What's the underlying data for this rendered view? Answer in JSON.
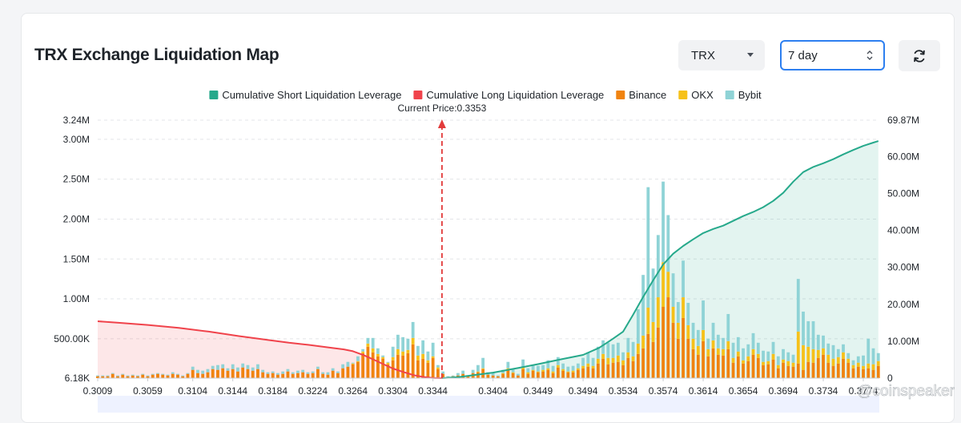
{
  "header": {
    "title": "TRX Exchange Liquidation Map",
    "coin_select": "TRX",
    "range_select": "7 day"
  },
  "icons": {
    "coin_caret": "chevron-down-icon",
    "range_stepper": "up-down-icon",
    "refresh": "refresh-icon"
  },
  "watermark": "@coinspeaker",
  "colors": {
    "short_cum": "#26a98b",
    "long_cum": "#f0434b",
    "binance": "#f0830f",
    "okx": "#f6c11a",
    "bybit": "#8fd3d6"
  },
  "chart_data": {
    "type": "bar",
    "current_price_label": "Current Price:0.3353",
    "current_price": 0.3353,
    "legend": [
      {
        "key": "short_cum",
        "label": "Cumulative Short Liquidation Leverage",
        "type": "line"
      },
      {
        "key": "long_cum",
        "label": "Cumulative Long Liquidation Leverage",
        "type": "line"
      },
      {
        "key": "binance",
        "label": "Binance",
        "type": "bar"
      },
      {
        "key": "okx",
        "label": "OKX",
        "type": "bar"
      },
      {
        "key": "bybit",
        "label": "Bybit",
        "type": "bar"
      }
    ],
    "x_ticks": [
      "0.3009",
      "0.3059",
      "0.3104",
      "0.3144",
      "0.3184",
      "0.3224",
      "0.3264",
      "0.3304",
      "0.3344",
      "0.3404",
      "0.3449",
      "0.3494",
      "0.3534",
      "0.3574",
      "0.3614",
      "0.3654",
      "0.3694",
      "0.3734",
      "0.3774"
    ],
    "x_range": [
      0.3009,
      0.379
    ],
    "y_left_ticks": [
      "6.18K",
      "500.00K",
      "1.00M",
      "1.50M",
      "2.00M",
      "2.50M",
      "3.00M",
      "3.24M"
    ],
    "y_left_values": [
      6180,
      500000,
      1000000,
      1500000,
      2000000,
      2500000,
      3000000,
      3240000
    ],
    "y_right_ticks": [
      "0",
      "10.00M",
      "20.00M",
      "30.00M",
      "40.00M",
      "50.00M",
      "60.00M",
      "69.87M"
    ],
    "y_right_values": [
      0,
      10000000,
      20000000,
      30000000,
      40000000,
      50000000,
      60000000,
      69870000
    ],
    "ylim_left": [
      6180,
      3240000
    ],
    "ylim_right": [
      0,
      69870000
    ],
    "bars": {
      "price": [
        0.3009,
        0.3014,
        0.3019,
        0.3024,
        0.3029,
        0.3034,
        0.3039,
        0.3044,
        0.3049,
        0.3054,
        0.3059,
        0.3064,
        0.3069,
        0.3074,
        0.3079,
        0.3084,
        0.3089,
        0.3094,
        0.3099,
        0.3104,
        0.3109,
        0.3114,
        0.3119,
        0.3124,
        0.3129,
        0.3134,
        0.3139,
        0.3144,
        0.3149,
        0.3154,
        0.3159,
        0.3164,
        0.3169,
        0.3174,
        0.3179,
        0.3184,
        0.3189,
        0.3194,
        0.3199,
        0.3204,
        0.3209,
        0.3214,
        0.3219,
        0.3224,
        0.3229,
        0.3234,
        0.3239,
        0.3244,
        0.3249,
        0.3254,
        0.3259,
        0.3264,
        0.3269,
        0.3274,
        0.3279,
        0.3284,
        0.3289,
        0.3294,
        0.3299,
        0.3304,
        0.3309,
        0.3314,
        0.3319,
        0.3324,
        0.3329,
        0.3334,
        0.3339,
        0.3344,
        0.3349,
        0.3354,
        0.3359,
        0.3364,
        0.3369,
        0.3374,
        0.3379,
        0.3384,
        0.3389,
        0.3394,
        0.3399,
        0.3404,
        0.3409,
        0.3414,
        0.3419,
        0.3424,
        0.3429,
        0.3434,
        0.3439,
        0.3444,
        0.3449,
        0.3454,
        0.3459,
        0.3464,
        0.3469,
        0.3474,
        0.3479,
        0.3484,
        0.3489,
        0.3494,
        0.3499,
        0.3504,
        0.3509,
        0.3514,
        0.3519,
        0.3524,
        0.3529,
        0.3534,
        0.3539,
        0.3544,
        0.3549,
        0.3554,
        0.3559,
        0.3564,
        0.3569,
        0.3574,
        0.3579,
        0.3584,
        0.3589,
        0.3594,
        0.3599,
        0.3604,
        0.3609,
        0.3614,
        0.3619,
        0.3624,
        0.3629,
        0.3634,
        0.3639,
        0.3644,
        0.3649,
        0.3654,
        0.3659,
        0.3664,
        0.3669,
        0.3674,
        0.3679,
        0.3684,
        0.3689,
        0.3694,
        0.3699,
        0.3704,
        0.3709,
        0.3714,
        0.3719,
        0.3724,
        0.3729,
        0.3734,
        0.3739,
        0.3744,
        0.3749,
        0.3754,
        0.3759,
        0.3764,
        0.3769,
        0.3774,
        0.3779,
        0.3784,
        0.3789
      ],
      "binance": [
        30000,
        30000,
        30000,
        60000,
        30000,
        50000,
        30000,
        40000,
        30000,
        50000,
        30000,
        50000,
        60000,
        50000,
        40000,
        60000,
        50000,
        30000,
        60000,
        110000,
        70000,
        60000,
        80000,
        120000,
        110000,
        130000,
        100000,
        120000,
        90000,
        140000,
        120000,
        100000,
        120000,
        80000,
        60000,
        70000,
        50000,
        60000,
        90000,
        60000,
        70000,
        80000,
        60000,
        70000,
        120000,
        60000,
        50000,
        100000,
        70000,
        130000,
        150000,
        180000,
        210000,
        320000,
        400000,
        330000,
        280000,
        250000,
        180000,
        230000,
        300000,
        290000,
        320000,
        430000,
        230000,
        250000,
        200000,
        260000,
        120000,
        60000,
        20000,
        30000,
        40000,
        60000,
        30000,
        70000,
        80000,
        120000,
        50000,
        40000,
        30000,
        60000,
        110000,
        70000,
        40000,
        120000,
        60000,
        100000,
        80000,
        90000,
        110000,
        70000,
        140000,
        100000,
        80000,
        80000,
        110000,
        130000,
        150000,
        130000,
        190000,
        250000,
        180000,
        200000,
        210000,
        170000,
        260000,
        220000,
        310000,
        380000,
        560000,
        460000,
        640000,
        900000,
        1020000,
        700000,
        500000,
        760000,
        500000,
        370000,
        300000,
        470000,
        280000,
        380000,
        300000,
        290000,
        370000,
        200000,
        280000,
        190000,
        220000,
        300000,
        260000,
        170000,
        180000,
        240000,
        130000,
        200000,
        160000,
        150000,
        190000,
        110000,
        210000,
        200000,
        260000,
        300000,
        200000,
        160000,
        190000,
        250000,
        200000,
        130000,
        150000,
        120000,
        130000,
        110000,
        160000,
        180000,
        150000,
        200000
      ],
      "okx": [
        0,
        0,
        0,
        0,
        0,
        0,
        0,
        0,
        0,
        0,
        0,
        0,
        0,
        0,
        0,
        0,
        0,
        0,
        0,
        0,
        0,
        0,
        0,
        0,
        0,
        0,
        0,
        0,
        0,
        0,
        0,
        0,
        0,
        0,
        0,
        0,
        0,
        0,
        0,
        0,
        0,
        0,
        0,
        0,
        0,
        0,
        0,
        0,
        0,
        0,
        0,
        10000,
        10000,
        20000,
        40000,
        50000,
        30000,
        20000,
        20000,
        40000,
        70000,
        50000,
        40000,
        80000,
        60000,
        60000,
        30000,
        20000,
        20000,
        0,
        0,
        0,
        0,
        0,
        0,
        0,
        10000,
        10000,
        0,
        0,
        0,
        10000,
        20000,
        10000,
        0,
        20000,
        20000,
        10000,
        10000,
        20000,
        20000,
        20000,
        30000,
        20000,
        10000,
        20000,
        20000,
        30000,
        40000,
        30000,
        60000,
        60000,
        80000,
        60000,
        80000,
        60000,
        70000,
        60000,
        130000,
        160000,
        330000,
        250000,
        380000,
        560000,
        320000,
        200000,
        200000,
        260000,
        170000,
        130000,
        110000,
        140000,
        90000,
        100000,
        80000,
        80000,
        100000,
        60000,
        60000,
        40000,
        60000,
        70000,
        50000,
        40000,
        40000,
        70000,
        40000,
        40000,
        60000,
        50000,
        400000,
        310000,
        190000,
        170000,
        100000,
        80000,
        100000,
        90000,
        80000,
        80000,
        50000,
        40000,
        50000,
        40000,
        60000,
        70000,
        60000,
        80000
      ],
      "bybit": [
        10000,
        10000,
        10000,
        10000,
        10000,
        10000,
        10000,
        10000,
        10000,
        10000,
        10000,
        10000,
        10000,
        10000,
        10000,
        20000,
        10000,
        10000,
        10000,
        40000,
        40000,
        40000,
        40000,
        40000,
        60000,
        50000,
        30000,
        60000,
        50000,
        50000,
        50000,
        40000,
        60000,
        30000,
        20000,
        20000,
        20000,
        30000,
        30000,
        20000,
        30000,
        30000,
        20000,
        20000,
        30000,
        20000,
        30000,
        30000,
        20000,
        50000,
        60000,
        10000,
        60000,
        30000,
        70000,
        130000,
        70000,
        20000,
        10000,
        130000,
        180000,
        180000,
        140000,
        200000,
        120000,
        170000,
        110000,
        170000,
        30000,
        30000,
        10000,
        10000,
        30000,
        40000,
        10000,
        40000,
        80000,
        130000,
        30000,
        30000,
        10000,
        40000,
        80000,
        40000,
        20000,
        100000,
        50000,
        60000,
        70000,
        60000,
        100000,
        70000,
        100000,
        70000,
        60000,
        60000,
        60000,
        100000,
        140000,
        100000,
        150000,
        170000,
        190000,
        170000,
        160000,
        100000,
        180000,
        180000,
        430000,
        760000,
        1510000,
        670000,
        780000,
        1010000,
        710000,
        420000,
        260000,
        460000,
        280000,
        200000,
        200000,
        370000,
        130000,
        220000,
        170000,
        140000,
        340000,
        190000,
        180000,
        150000,
        150000,
        200000,
        140000,
        140000,
        120000,
        150000,
        110000,
        130000,
        110000,
        100000,
        660000,
        420000,
        320000,
        350000,
        190000,
        160000,
        140000,
        170000,
        100000,
        100000,
        70000,
        60000,
        80000,
        130000,
        310000,
        200000,
        100000,
        160000
      ]
    },
    "long_cumulative": {
      "price": [
        0.3009,
        0.303,
        0.3059,
        0.309,
        0.312,
        0.315,
        0.318,
        0.32,
        0.322,
        0.324,
        0.3255,
        0.3264,
        0.3275,
        0.3285,
        0.3295,
        0.3304,
        0.3315,
        0.3325,
        0.3335,
        0.3344,
        0.3353
      ],
      "value": [
        15400000,
        15000000,
        14400000,
        13600000,
        12600000,
        11400000,
        10300000,
        9600000,
        9000000,
        8300000,
        7800000,
        7300000,
        6200000,
        5000000,
        3700000,
        2600000,
        1600000,
        800000,
        300000,
        50000,
        0
      ]
    },
    "short_cumulative": {
      "price": [
        0.3353,
        0.337,
        0.3404,
        0.343,
        0.3449,
        0.347,
        0.3494,
        0.351,
        0.3524,
        0.3534,
        0.3544,
        0.3554,
        0.3564,
        0.3574,
        0.3584,
        0.3594,
        0.3604,
        0.3614,
        0.3624,
        0.3634,
        0.3644,
        0.3654,
        0.3664,
        0.3674,
        0.3684,
        0.3694,
        0.3704,
        0.3714,
        0.3724,
        0.3734,
        0.3744,
        0.3754,
        0.3764,
        0.3774,
        0.3784,
        0.3789
      ],
      "value": [
        0,
        300000,
        1500000,
        2800000,
        3800000,
        5000000,
        6300000,
        8200000,
        10700000,
        12600000,
        17200000,
        22000000,
        26500000,
        30800000,
        33700000,
        35800000,
        37600000,
        39300000,
        40400000,
        41300000,
        42600000,
        43900000,
        45000000,
        46300000,
        48000000,
        50200000,
        53200000,
        55800000,
        57200000,
        58200000,
        59300000,
        60600000,
        61800000,
        62900000,
        63800000,
        64200000
      ]
    }
  }
}
